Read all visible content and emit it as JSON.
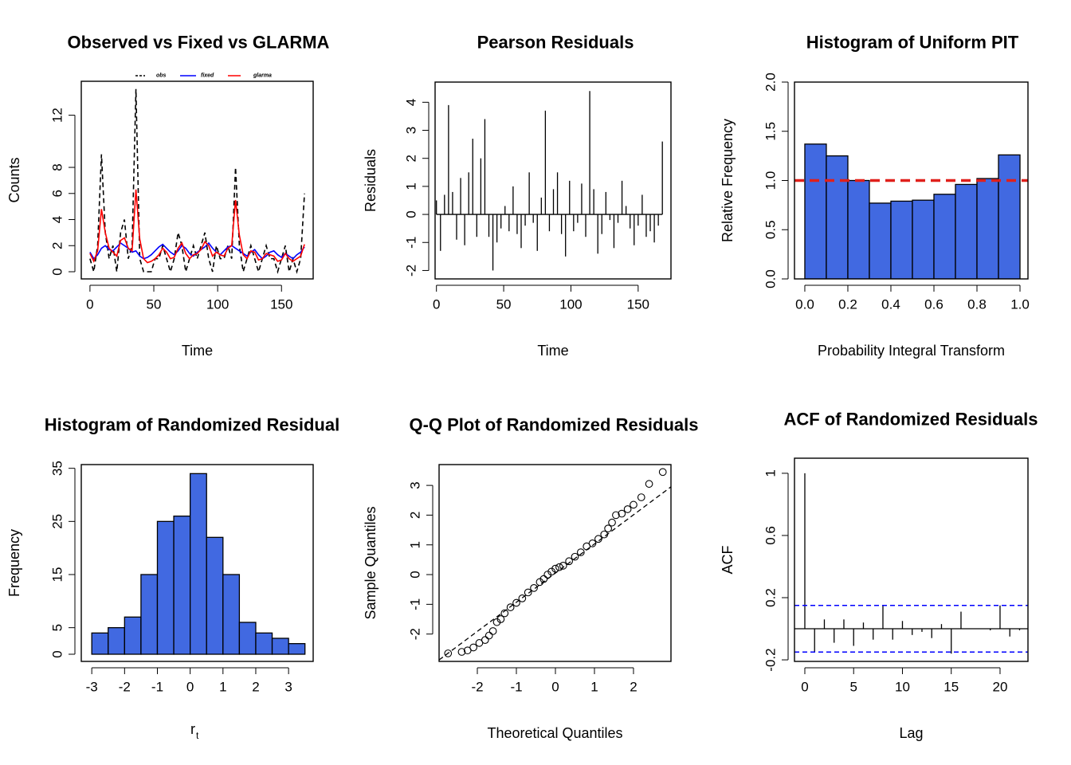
{
  "chart_data": [
    {
      "type": "line",
      "title": "Observed vs Fixed vs GLARMA",
      "xlabel": "Time",
      "ylabel": "Counts",
      "x": [
        0,
        3,
        6,
        9,
        12,
        15,
        18,
        21,
        24,
        27,
        30,
        33,
        36,
        39,
        42,
        45,
        48,
        51,
        54,
        57,
        60,
        63,
        66,
        69,
        72,
        75,
        78,
        81,
        84,
        87,
        90,
        93,
        96,
        99,
        102,
        105,
        108,
        111,
        114,
        117,
        120,
        123,
        126,
        129,
        132,
        135,
        138,
        141,
        144,
        147,
        150,
        153,
        156,
        159,
        162,
        165,
        168
      ],
      "series": [
        {
          "name": "obs",
          "color": "#000000",
          "linestyle": "dashed",
          "values": [
            1,
            0,
            2,
            9,
            3,
            1,
            2,
            0,
            3,
            4,
            1,
            2,
            14,
            1,
            0,
            0,
            0,
            1,
            1,
            2,
            1,
            0,
            1,
            3,
            2,
            0,
            1,
            2,
            1,
            2,
            3,
            1,
            0,
            2,
            1,
            1,
            2,
            1,
            8,
            2,
            0,
            1,
            2,
            1,
            0,
            1,
            2,
            1,
            1,
            0,
            1,
            2,
            0,
            1,
            0,
            1,
            6
          ]
        },
        {
          "name": "fixed",
          "color": "#0000ff",
          "linestyle": "solid",
          "values": [
            1.5,
            1.0,
            1.3,
            1.8,
            2.0,
            1.7,
            1.6,
            1.9,
            2.2,
            2.0,
            1.8,
            1.5,
            1.6,
            1.2,
            1.0,
            1.1,
            1.3,
            1.6,
            1.9,
            2.1,
            1.8,
            1.5,
            1.3,
            1.6,
            2.0,
            1.8,
            1.4,
            1.2,
            1.5,
            1.7,
            1.9,
            2.2,
            1.8,
            1.5,
            1.3,
            1.6,
            1.9,
            2.0,
            1.8,
            1.6,
            1.4,
            1.2,
            1.5,
            1.7,
            1.3,
            1.0,
            1.2,
            1.5,
            1.6,
            1.3,
            1.1,
            1.4,
            1.2,
            1.0,
            1.3,
            1.5,
            1.9
          ]
        },
        {
          "name": "glarma",
          "color": "#ff0000",
          "linestyle": "solid",
          "values": [
            1.4,
            0.8,
            1.6,
            4.8,
            3.0,
            1.8,
            1.5,
            1.2,
            2.4,
            2.6,
            1.8,
            1.6,
            6.3,
            2.5,
            1.0,
            0.7,
            0.8,
            1.0,
            1.3,
            1.8,
            1.5,
            1.0,
            1.1,
            1.8,
            2.2,
            1.4,
            1.0,
            1.3,
            1.4,
            1.7,
            2.3,
            2.0,
            1.2,
            1.5,
            1.3,
            1.2,
            1.8,
            2.0,
            5.5,
            2.8,
            1.3,
            1.0,
            1.6,
            1.5,
            0.9,
            1.0,
            1.4,
            1.3,
            1.2,
            0.8,
            0.9,
            1.4,
            1.0,
            0.8,
            1.0,
            1.2,
            2.1
          ]
        }
      ],
      "xlim": [
        -6.8,
        174.8
      ],
      "xticks": [
        0,
        50,
        100,
        150
      ],
      "ylim": [
        -0.55,
        14.6
      ],
      "yticks": [
        0,
        2,
        4,
        6,
        8,
        12
      ],
      "legend": "top"
    },
    {
      "type": "stem",
      "title": "Pearson Residuals",
      "xlabel": "Time",
      "ylabel": "Residuals",
      "color": "#000000",
      "x": [
        0,
        3,
        6,
        9,
        12,
        15,
        18,
        21,
        24,
        27,
        30,
        33,
        36,
        39,
        42,
        45,
        48,
        51,
        54,
        57,
        60,
        63,
        66,
        69,
        72,
        75,
        78,
        81,
        84,
        87,
        90,
        93,
        96,
        99,
        102,
        105,
        108,
        111,
        114,
        117,
        120,
        123,
        126,
        129,
        132,
        135,
        138,
        141,
        144,
        147,
        150,
        153,
        156,
        159,
        162,
        165,
        168
      ],
      "values": [
        0.5,
        -1.3,
        0.7,
        3.9,
        0.8,
        -0.9,
        1.3,
        -1.1,
        1.5,
        2.7,
        -0.8,
        2.0,
        3.4,
        -0.8,
        -2.0,
        -1.0,
        -0.5,
        0.3,
        -0.6,
        1.0,
        -0.7,
        -1.2,
        -0.4,
        1.5,
        -0.3,
        -1.3,
        0.6,
        3.7,
        -0.6,
        0.9,
        1.5,
        -0.7,
        -1.5,
        1.2,
        -0.6,
        -0.3,
        1.1,
        -0.8,
        4.4,
        0.9,
        -1.4,
        -0.7,
        0.8,
        -0.2,
        -1.2,
        -0.3,
        1.2,
        0.3,
        -0.5,
        -1.1,
        -0.4,
        0.7,
        -0.8,
        -0.6,
        -1.0,
        -0.4,
        2.6
      ],
      "xlim": [
        -1.0,
        174.4
      ],
      "xticks": [
        0,
        50,
        100,
        150
      ],
      "ylim": [
        -2.3,
        4.72
      ],
      "yticks": [
        -2,
        -1,
        0,
        1,
        2,
        3,
        4
      ]
    },
    {
      "type": "histogram",
      "title": "Histogram of Uniform PIT",
      "xlabel": "Probability Integral Transform",
      "ylabel": "Relative Frequency",
      "color": "#4169e1",
      "bins": [
        0,
        0.1,
        0.2,
        0.3,
        0.4,
        0.5,
        0.6,
        0.7,
        0.8,
        0.9,
        1.0
      ],
      "values": [
        1.37,
        1.25,
        1.0,
        0.77,
        0.79,
        0.8,
        0.86,
        0.96,
        1.02,
        1.26
      ],
      "hline": 1,
      "hline_color": "#e0201b",
      "xlim": [
        -0.048,
        1.037
      ],
      "xticks": [
        {
          "value": 0,
          "label": "0.0"
        },
        {
          "value": 0.2,
          "label": "0.2"
        },
        {
          "value": 0.4,
          "label": "0.4"
        },
        {
          "value": 0.6,
          "label": "0.6"
        },
        {
          "value": 0.8,
          "label": "0.8"
        },
        {
          "value": 1,
          "label": "1.0"
        }
      ],
      "ylim": [
        0,
        2
      ],
      "yticks": [
        {
          "value": 0,
          "label": "0.0"
        },
        {
          "value": 0.5,
          "label": "0.5"
        },
        {
          "value": 1,
          "label": "1.0"
        },
        {
          "value": 1.5,
          "label": "1.5"
        },
        {
          "value": 2,
          "label": "2.0"
        }
      ]
    },
    {
      "type": "histogram",
      "title": "Histogram of Randomized Residual",
      "xlabel": "r",
      "xlabel_sub": "t",
      "ylabel": "Frequency",
      "color": "#4169e1",
      "bins": [
        -3,
        -2.5,
        -2,
        -1.5,
        -1,
        -0.5,
        0,
        0.5,
        1,
        1.5,
        2,
        2.5,
        3,
        3.5
      ],
      "values": [
        4,
        5,
        7,
        15,
        25,
        26,
        34,
        22,
        15,
        6,
        4,
        3,
        2
      ],
      "xlim": [
        -3.32,
        3.75
      ],
      "xticks": [
        -3,
        -2,
        -1,
        0,
        1,
        2,
        3
      ],
      "ylim": [
        -1.35,
        35.7
      ],
      "yticks": [
        0,
        5,
        15,
        25,
        35
      ]
    },
    {
      "type": "scatter",
      "title": "Q-Q Plot of Randomized Residuals",
      "xlabel": "Theoretical Quantiles",
      "ylabel": "Sample Quantiles",
      "color": "#000000",
      "x": [
        -2.75,
        -2.4,
        -2.25,
        -2.1,
        -1.95,
        -1.8,
        -1.7,
        -1.6,
        -1.5,
        -1.4,
        -1.3,
        -1.15,
        -1.0,
        -0.85,
        -0.7,
        -0.55,
        -0.4,
        -0.3,
        -0.2,
        -0.1,
        0,
        0.1,
        0.2,
        0.35,
        0.5,
        0.65,
        0.8,
        0.95,
        1.1,
        1.25,
        1.35,
        1.45,
        1.55,
        1.7,
        1.85,
        2.0,
        2.2,
        2.4,
        2.75
      ],
      "values": [
        -2.65,
        -2.6,
        -2.55,
        -2.45,
        -2.3,
        -2.2,
        -2.05,
        -1.9,
        -1.6,
        -1.5,
        -1.3,
        -1.1,
        -0.95,
        -0.8,
        -0.6,
        -0.45,
        -0.25,
        -0.15,
        0.0,
        0.1,
        0.2,
        0.25,
        0.3,
        0.45,
        0.6,
        0.75,
        0.95,
        1.05,
        1.2,
        1.35,
        1.55,
        1.75,
        2.0,
        2.05,
        2.2,
        2.35,
        2.6,
        3.05,
        3.45
      ],
      "reference_line": {
        "intercept": 0.05,
        "slope": 0.98
      },
      "xlim": [
        -2.98,
        2.96
      ],
      "xticks": [
        -2,
        -1,
        0,
        1,
        2
      ],
      "ylim": [
        -2.92,
        3.7
      ],
      "yticks": [
        -2,
        -1,
        0,
        1,
        2,
        3
      ]
    },
    {
      "type": "stem",
      "title": "ACF of Randomized Residuals",
      "xlabel": "Lag",
      "ylabel": "ACF",
      "color": "#000000",
      "x": [
        0,
        1,
        2,
        3,
        4,
        5,
        6,
        7,
        8,
        9,
        10,
        11,
        12,
        13,
        14,
        15,
        16,
        17,
        18,
        19,
        20,
        21,
        22
      ],
      "values": [
        1.0,
        -0.15,
        0.06,
        -0.09,
        0.06,
        -0.11,
        0.04,
        -0.07,
        0.15,
        -0.07,
        0.05,
        -0.04,
        -0.02,
        -0.06,
        0.03,
        -0.16,
        0.11,
        0,
        0,
        -0.01,
        0.15,
        -0.05,
        -0.01
      ],
      "ci": [
        0.15,
        -0.15
      ],
      "ci_color": "#0000ff",
      "xlim": [
        -1.06,
        22.86
      ],
      "xticks": [
        0,
        5,
        10,
        15,
        20
      ],
      "ylim": [
        -0.21,
        1.097
      ],
      "yticks": [
        -0.2,
        0.2,
        0.6,
        1.0
      ]
    }
  ]
}
